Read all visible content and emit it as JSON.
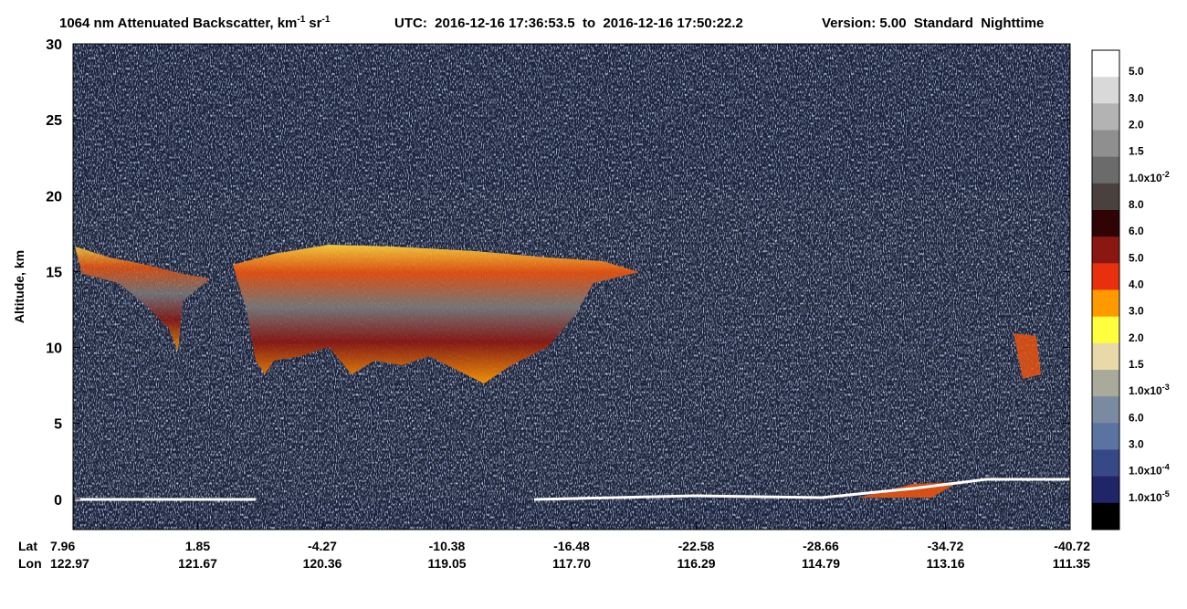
{
  "chart_data": {
    "type": "heatmap",
    "title": "1064 nm Attenuated Backscatter, km",
    "title_unit1_power": "-1",
    "title_unit2": "sr",
    "title_unit2_power": "-1",
    "utc": "UTC:  2016-12-16 17:36:53.5  to  2016-12-16 17:50:22.2",
    "version": "Version: 5.00  Standard  Nighttime",
    "ylabel": "Altitude, km",
    "ylim": [
      -2,
      30
    ],
    "yticks": [
      0,
      5,
      10,
      15,
      20,
      25,
      30
    ],
    "x_row_labels": [
      "Lat",
      "Lon"
    ],
    "lat": [
      "7.96",
      "1.85",
      "-4.27",
      "-10.38",
      "-16.48",
      "-22.58",
      "-28.66",
      "-34.72",
      "-40.72"
    ],
    "lon": [
      "122.97",
      "121.67",
      "120.36",
      "119.05",
      "117.70",
      "116.29",
      "114.79",
      "113.16",
      "111.35"
    ],
    "colorbar": {
      "colors": [
        "#ffffff",
        "#d9d9d9",
        "#b3b3b3",
        "#8f8f8f",
        "#6b6b6b",
        "#4a403d",
        "#2e0404",
        "#8a1712",
        "#e8300f",
        "#ff9900",
        "#ffff3d",
        "#ead9a8",
        "#a9aa9a",
        "#7a8aa1",
        "#5a73a1",
        "#374887",
        "#1f2566",
        "#000000"
      ],
      "labels": [
        {
          "base": "5.0"
        },
        {
          "base": "3.0"
        },
        {
          "base": "2.0"
        },
        {
          "base": "1.5"
        },
        {
          "base": "1.0x10",
          "exp": "-2"
        },
        {
          "base": "8.0"
        },
        {
          "base": "6.0"
        },
        {
          "base": "5.0"
        },
        {
          "base": "4.0"
        },
        {
          "base": "3.0"
        },
        {
          "base": "2.0"
        },
        {
          "base": "1.5"
        },
        {
          "base": "1.0x10",
          "exp": "-3"
        },
        {
          "base": "6.0"
        },
        {
          "base": "3.0"
        },
        {
          "base": "1.0x10",
          "exp": "-4"
        },
        {
          "base": "1.0x10",
          "exp": "-5"
        }
      ]
    }
  }
}
